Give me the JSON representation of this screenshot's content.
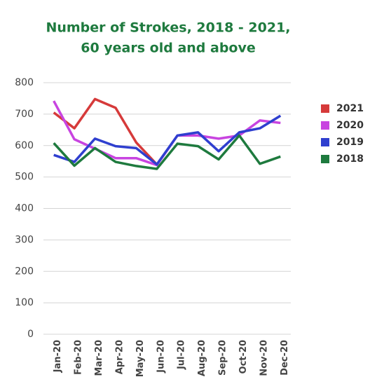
{
  "chart_data": {
    "type": "line",
    "title": [
      "Number of Strokes, 2018 - 2021,",
      "60 years old and above"
    ],
    "categories": [
      "Jan-20",
      "Feb-20",
      "Mar-20",
      "Apr-20",
      "May-20",
      "Jun-20",
      "Jul-20",
      "Aug-20",
      "Sep-20",
      "Oct-20",
      "Nov-20",
      "Dec-20"
    ],
    "series": [
      {
        "name": "2021",
        "color": "#d63a3a",
        "values": [
          705,
          655,
          748,
          720,
          610,
          540,
          null,
          null,
          null,
          null,
          null,
          null
        ]
      },
      {
        "name": "2020",
        "color": "#c844e0",
        "values": [
          742,
          620,
          590,
          560,
          560,
          538,
          632,
          632,
          622,
          632,
          680,
          672
        ]
      },
      {
        "name": "2019",
        "color": "#2f3fcf",
        "values": [
          570,
          548,
          622,
          598,
          592,
          540,
          632,
          642,
          582,
          642,
          655,
          695
        ]
      },
      {
        "name": "2018",
        "color": "#1e7a3e",
        "values": [
          608,
          536,
          592,
          548,
          535,
          526,
          606,
          598,
          556,
          632,
          542,
          565
        ]
      }
    ],
    "ylim": [
      0,
      800
    ],
    "yticks": [
      0,
      100,
      200,
      300,
      400,
      500,
      600,
      700,
      800
    ],
    "grid": true,
    "legend": "right"
  }
}
